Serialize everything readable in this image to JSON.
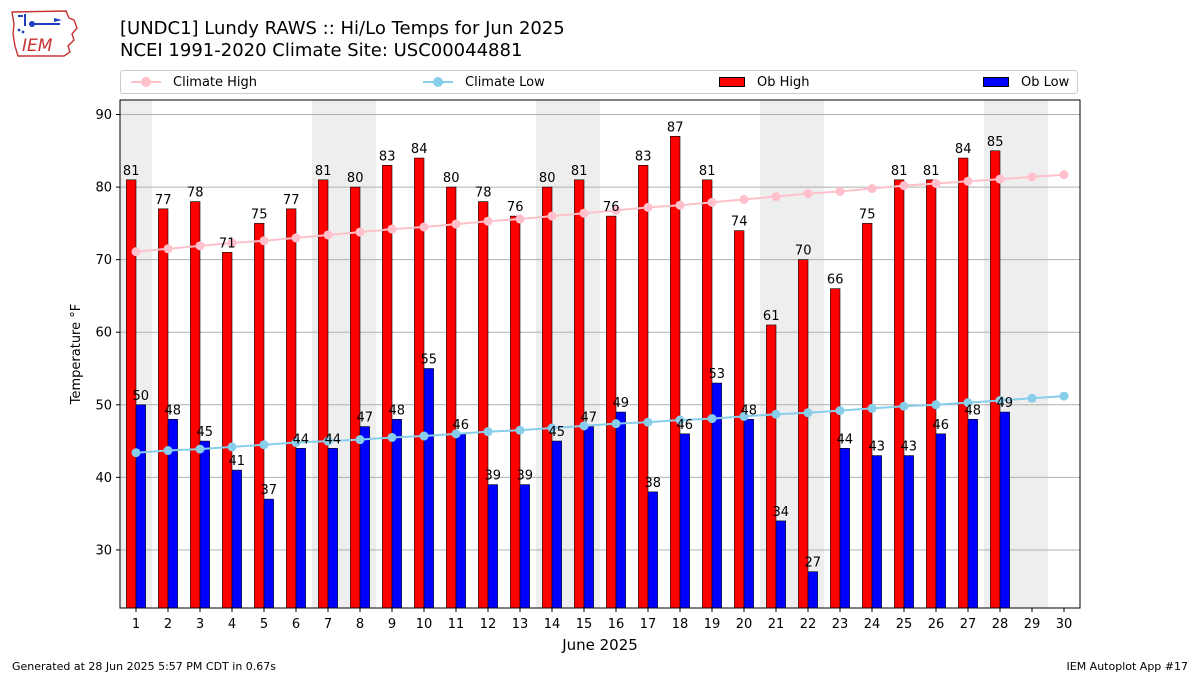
{
  "header": {
    "title_line1": "[UNDC1] Lundy RAWS :: Hi/Lo Temps for Jun 2025",
    "title_line2": "NCEI 1991-2020 Climate Site: USC00044881"
  },
  "logo": {
    "text": "IEM",
    "icon": "iowa-state-outline-logo"
  },
  "legend": {
    "items": [
      {
        "label": "Climate High",
        "kind": "line-marker",
        "color": "#ffc0cb"
      },
      {
        "label": "Climate Low",
        "kind": "line-marker",
        "color": "#87ceeb"
      },
      {
        "label": "Ob High",
        "kind": "bar",
        "color": "#ff0000"
      },
      {
        "label": "Ob Low",
        "kind": "bar",
        "color": "#0000ff"
      }
    ]
  },
  "footer": {
    "left": "Generated at 28 Jun 2025 5:57 PM CDT in 0.67s",
    "right": "IEM Autoplot App #17"
  },
  "chart_data": {
    "type": "bar",
    "xlabel": "June 2025",
    "ylabel": "Temperature °F",
    "ylim": [
      22,
      92
    ],
    "yticks": [
      30,
      40,
      50,
      60,
      70,
      80,
      90
    ],
    "grid": "horizontal",
    "legend_position": "top",
    "weekend_shading": [
      [
        1,
        1
      ],
      [
        7,
        8
      ],
      [
        14,
        15
      ],
      [
        21,
        22
      ],
      [
        28,
        29
      ]
    ],
    "categories": [
      "1",
      "2",
      "3",
      "4",
      "5",
      "6",
      "7",
      "8",
      "9",
      "10",
      "11",
      "12",
      "13",
      "14",
      "15",
      "16",
      "17",
      "18",
      "19",
      "20",
      "21",
      "22",
      "23",
      "24",
      "25",
      "26",
      "27",
      "28",
      "29",
      "30"
    ],
    "series": [
      {
        "name": "Ob High",
        "kind": "bar",
        "color": "#ff0000",
        "values": [
          81,
          77,
          78,
          71,
          75,
          77,
          81,
          80,
          83,
          84,
          80,
          78,
          76,
          80,
          81,
          76,
          83,
          87,
          81,
          74,
          61,
          70,
          66,
          75,
          81,
          81,
          84,
          85,
          null,
          null
        ]
      },
      {
        "name": "Ob Low",
        "kind": "bar",
        "color": "#0000ff",
        "values": [
          50,
          48,
          45,
          41,
          37,
          44,
          44,
          47,
          48,
          55,
          46,
          39,
          39,
          45,
          47,
          49,
          38,
          46,
          53,
          48,
          34,
          27,
          44,
          43,
          43,
          46,
          48,
          49,
          null,
          null
        ]
      },
      {
        "name": "Climate High",
        "kind": "line",
        "color": "#ffc0cb",
        "values": [
          71.1,
          71.5,
          71.9,
          72.3,
          72.6,
          73.0,
          73.4,
          73.8,
          74.2,
          74.5,
          74.9,
          75.3,
          75.6,
          76.0,
          76.4,
          76.8,
          77.2,
          77.5,
          77.9,
          78.3,
          78.7,
          79.1,
          79.4,
          79.8,
          80.2,
          80.5,
          80.8,
          81.1,
          81.4,
          81.7
        ]
      },
      {
        "name": "Climate Low",
        "kind": "line",
        "color": "#87ceeb",
        "values": [
          43.4,
          43.7,
          43.9,
          44.2,
          44.5,
          44.8,
          45.0,
          45.2,
          45.5,
          45.7,
          46.0,
          46.3,
          46.5,
          46.8,
          47.1,
          47.4,
          47.6,
          47.9,
          48.1,
          48.4,
          48.7,
          48.9,
          49.2,
          49.5,
          49.8,
          50.0,
          50.3,
          50.6,
          50.9,
          51.2
        ]
      }
    ]
  }
}
